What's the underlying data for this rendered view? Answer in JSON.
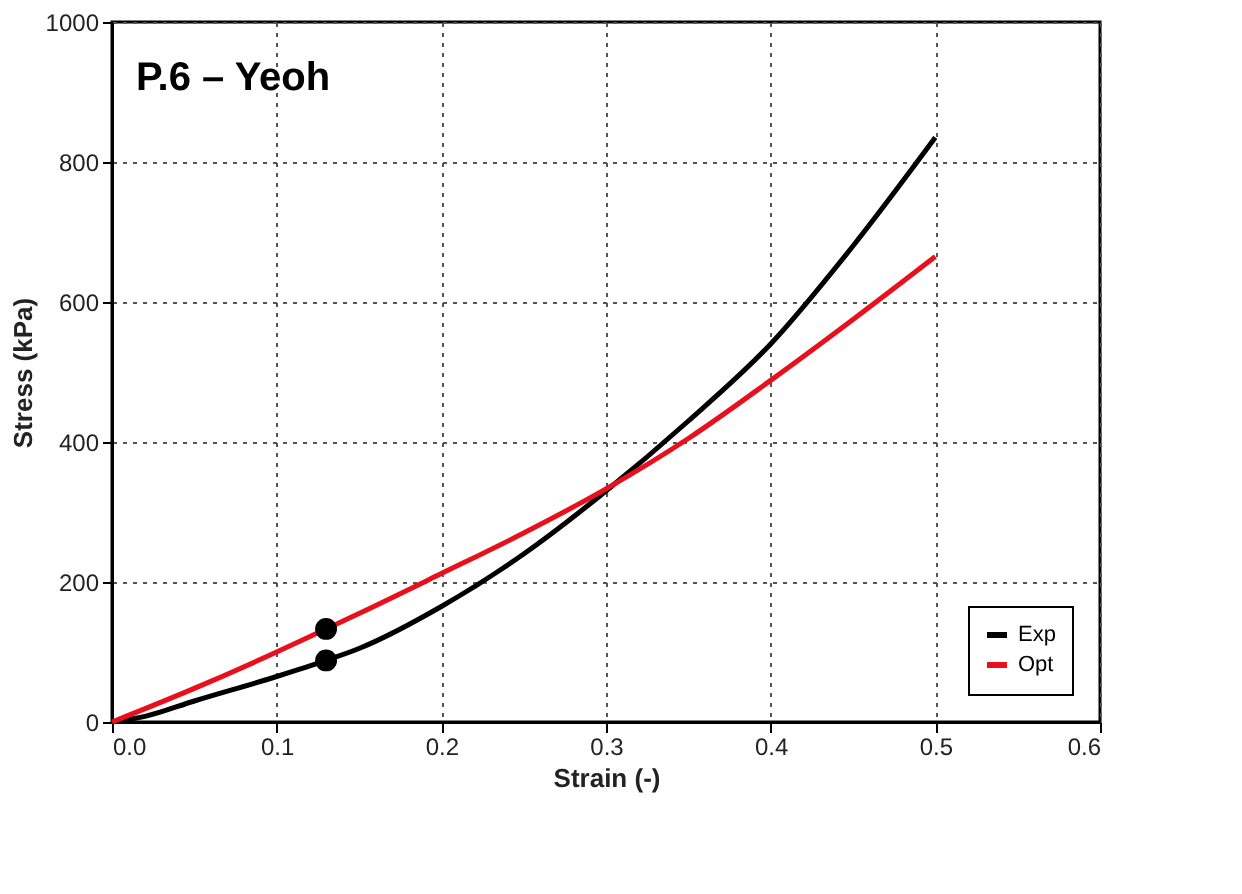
{
  "chart_data": {
    "type": "line",
    "title": "P.6 – Yeoh",
    "xlabel": "Strain (-)",
    "ylabel": "Stress (kPa)",
    "xlim": [
      0,
      0.6
    ],
    "xticks": [
      {
        "value": 0,
        "label": "0.0"
      },
      0.1,
      0.2,
      0.3,
      0.4,
      0.5,
      0.6
    ],
    "ylim": [
      0,
      1000
    ],
    "yticks": [
      0,
      200,
      400,
      600,
      800,
      1000
    ],
    "grid": true,
    "legend": "bottom right",
    "series": [
      {
        "name": "Exp",
        "color": "#000000",
        "x": [
          0,
          0.02,
          0.05,
          0.1,
          0.13,
          0.15,
          0.2,
          0.25,
          0.3,
          0.35,
          0.4,
          0.45,
          0.5
        ],
        "values": [
          0,
          8,
          30,
          65,
          88,
          105,
          165,
          240,
          330,
          430,
          540,
          680,
          835
        ]
      },
      {
        "name": "Opt",
        "color": "#e8101c",
        "x": [
          0,
          0.05,
          0.1,
          0.13,
          0.15,
          0.2,
          0.25,
          0.3,
          0.35,
          0.4,
          0.45,
          0.5
        ],
        "values": [
          0,
          48,
          100,
          133,
          155,
          212,
          270,
          333,
          405,
          488,
          575,
          665
        ]
      },
      {
        "type": "scatter",
        "color": "#000000",
        "marker": "circle",
        "x": [
          0.13,
          0.13
        ],
        "values": [
          88,
          133
        ]
      }
    ]
  }
}
